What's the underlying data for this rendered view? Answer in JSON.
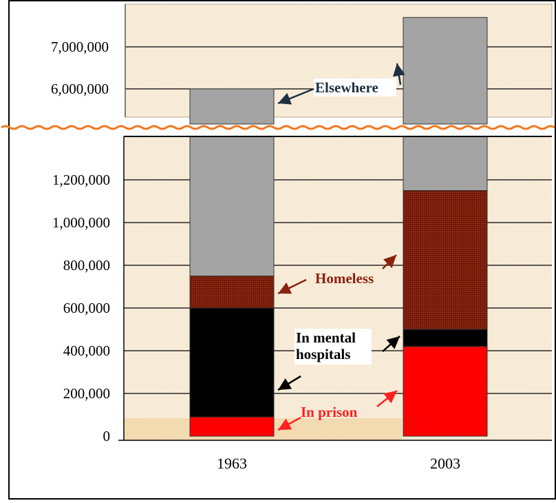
{
  "chart_data": {
    "type": "bar",
    "stacked": true,
    "broken_y_axis": true,
    "axis_break_range": [
      1400000,
      5000000
    ],
    "categories": [
      "1963",
      "2003"
    ],
    "series": [
      {
        "name": "In prison",
        "values": [
          90000,
          420000
        ],
        "color": "#ff0000",
        "label_color": "#ff2020"
      },
      {
        "name": "In mental hospitals",
        "values": [
          510000,
          80000
        ],
        "color": "#000000",
        "label_color": "#000000"
      },
      {
        "name": "Homeless",
        "values": [
          150000,
          650000
        ],
        "color": "#7a1c0a",
        "label_color": "#8b2210"
      },
      {
        "name": "Elsewhere",
        "values": [
          5250000,
          6550000
        ],
        "color": "#a4a4a4",
        "label_color": "#1c3040"
      }
    ],
    "totals": [
      6000000,
      7700000
    ],
    "y_ticks_lower": [
      "0",
      "200,000",
      "400,000",
      "600,000",
      "800,000",
      "1,000,000",
      "1,200,000"
    ],
    "y_ticks_upper": [
      "6,000,000",
      "7,000,000"
    ],
    "title": "",
    "xlabel": "",
    "ylabel": "",
    "grid": true,
    "background_color": "#f7ecd9"
  }
}
